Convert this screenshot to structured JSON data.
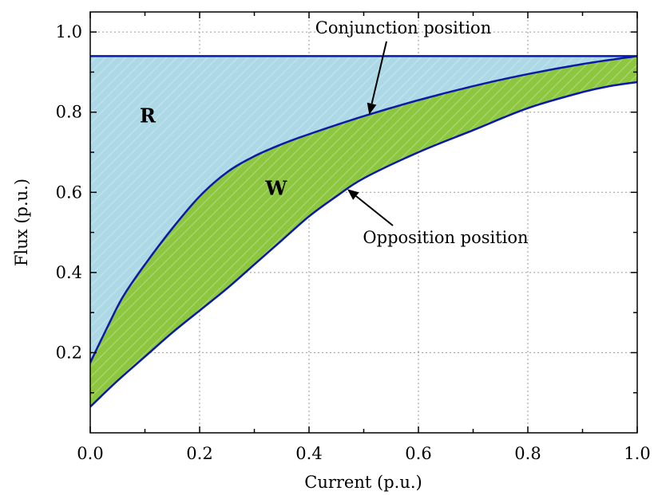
{
  "chart_data": {
    "type": "area",
    "xlabel": "Current (p.u.)",
    "ylabel": "Flux (p.u.)",
    "xlim": [
      0,
      1
    ],
    "ylim": [
      0,
      1.05
    ],
    "x_ticks": [
      "0.0",
      "0.2",
      "0.4",
      "0.6",
      "0.8",
      "1.0"
    ],
    "y_ticks": [
      "0.2",
      "0.4",
      "0.6",
      "0.8",
      "1.0"
    ],
    "grid": true,
    "colors": {
      "region_r": "#add8e6",
      "region_w": "#8dc63f",
      "curve": "#0a1aa8"
    },
    "series": [
      {
        "name": "Conjunction position",
        "x": [
          0.0,
          0.03,
          0.06,
          0.1,
          0.15,
          0.2,
          0.25,
          0.3,
          0.35,
          0.4,
          0.5,
          0.6,
          0.7,
          0.8,
          0.9,
          1.0
        ],
        "y": [
          0.175,
          0.26,
          0.34,
          0.42,
          0.51,
          0.59,
          0.65,
          0.69,
          0.72,
          0.745,
          0.79,
          0.83,
          0.865,
          0.895,
          0.92,
          0.94
        ]
      },
      {
        "name": "Opposition position",
        "x": [
          0.0,
          0.05,
          0.1,
          0.15,
          0.2,
          0.25,
          0.3,
          0.35,
          0.4,
          0.45,
          0.5,
          0.6,
          0.7,
          0.8,
          0.9,
          0.95,
          1.0
        ],
        "y": [
          0.065,
          0.13,
          0.19,
          0.25,
          0.305,
          0.36,
          0.42,
          0.48,
          0.54,
          0.59,
          0.635,
          0.7,
          0.755,
          0.81,
          0.85,
          0.865,
          0.875
        ]
      }
    ],
    "max_flux": 0.94,
    "annotations": [
      {
        "text": "Conjunction position",
        "target_series": 0,
        "x": 0.51
      },
      {
        "text": "Opposition position",
        "target_series": 1,
        "x": 0.47
      }
    ],
    "region_labels": [
      {
        "text": "R",
        "x": 0.2,
        "y": 0.79
      },
      {
        "text": "W",
        "x": 0.34,
        "y": 0.61
      }
    ]
  }
}
